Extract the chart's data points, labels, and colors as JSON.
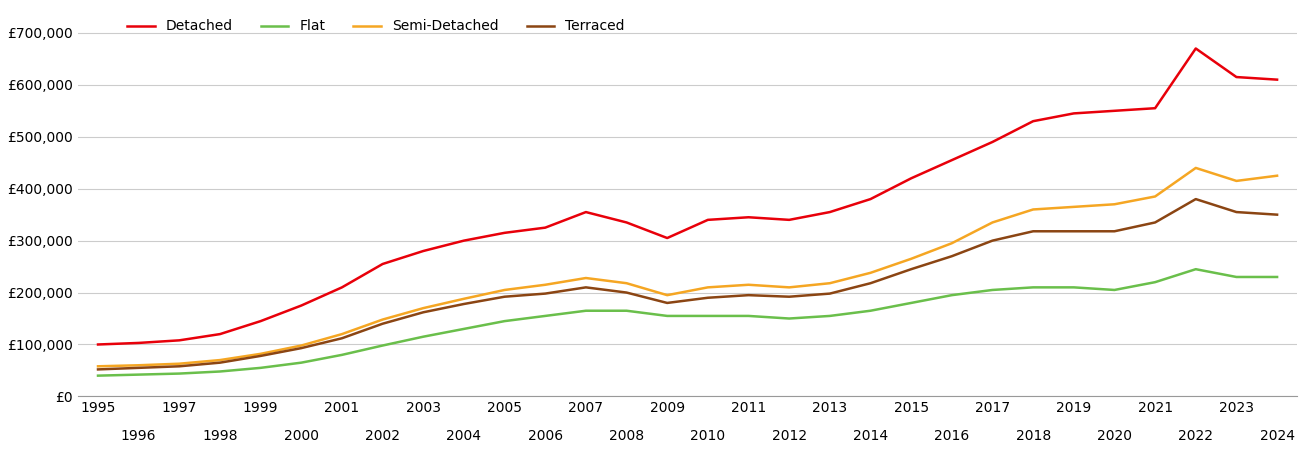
{
  "years": [
    1995,
    1996,
    1997,
    1998,
    1999,
    2000,
    2001,
    2002,
    2003,
    2004,
    2005,
    2006,
    2007,
    2008,
    2009,
    2010,
    2011,
    2012,
    2013,
    2014,
    2015,
    2016,
    2017,
    2018,
    2019,
    2020,
    2021,
    2022,
    2023,
    2024
  ],
  "detached": [
    100000,
    103000,
    108000,
    120000,
    145000,
    175000,
    210000,
    255000,
    280000,
    300000,
    315000,
    325000,
    355000,
    335000,
    305000,
    340000,
    345000,
    340000,
    355000,
    380000,
    420000,
    455000,
    490000,
    530000,
    545000,
    550000,
    555000,
    670000,
    615000,
    610000
  ],
  "flat": [
    40000,
    42000,
    44000,
    48000,
    55000,
    65000,
    80000,
    98000,
    115000,
    130000,
    145000,
    155000,
    165000,
    165000,
    155000,
    155000,
    155000,
    150000,
    155000,
    165000,
    180000,
    195000,
    205000,
    210000,
    210000,
    205000,
    220000,
    245000,
    230000,
    230000
  ],
  "semi_detached": [
    58000,
    60000,
    63000,
    70000,
    82000,
    98000,
    120000,
    148000,
    170000,
    188000,
    205000,
    215000,
    228000,
    218000,
    195000,
    210000,
    215000,
    210000,
    218000,
    238000,
    265000,
    295000,
    335000,
    360000,
    365000,
    370000,
    385000,
    440000,
    415000,
    425000
  ],
  "terraced": [
    52000,
    55000,
    58000,
    65000,
    78000,
    93000,
    112000,
    140000,
    162000,
    178000,
    192000,
    198000,
    210000,
    200000,
    180000,
    190000,
    195000,
    192000,
    198000,
    218000,
    245000,
    270000,
    300000,
    318000,
    318000,
    318000,
    335000,
    380000,
    355000,
    350000
  ],
  "colors": {
    "detached": "#e8000a",
    "flat": "#6abf4b",
    "semi_detached": "#f5a623",
    "terraced": "#8B4513"
  },
  "ylim": [
    0,
    750000
  ],
  "yticks": [
    0,
    100000,
    200000,
    300000,
    400000,
    500000,
    600000,
    700000
  ],
  "background_color": "#ffffff",
  "grid_color": "#cccccc",
  "legend_labels": [
    "Detached",
    "Flat",
    "Semi-Detached",
    "Terraced"
  ],
  "line_width": 1.8
}
